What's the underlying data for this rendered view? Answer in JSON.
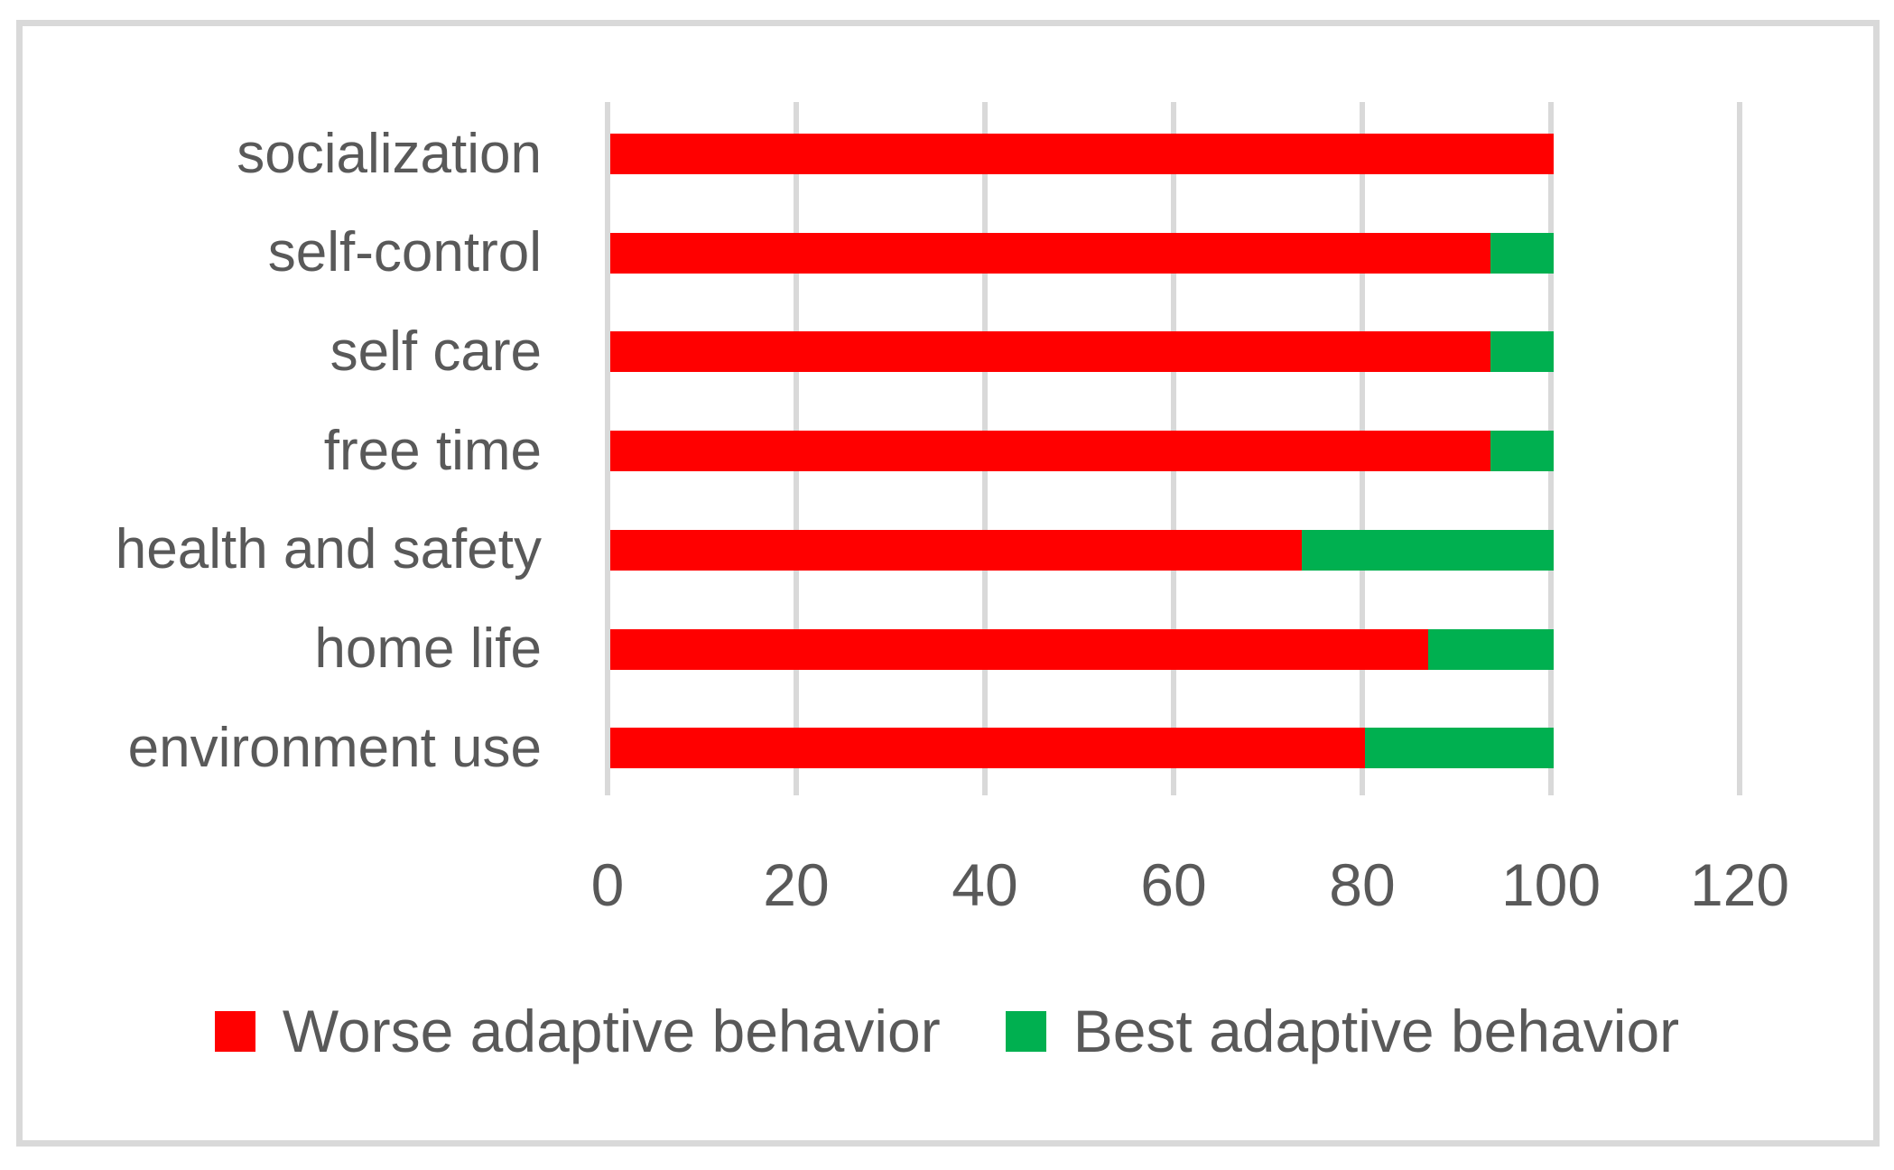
{
  "chart_data": {
    "type": "bar",
    "orientation": "horizontal",
    "stacked": true,
    "title": "",
    "xlabel": "",
    "ylabel": "",
    "categories": [
      "socialization",
      "self-control",
      "self care",
      "free time",
      "health and safety",
      "home life",
      "environment use"
    ],
    "series": [
      {
        "name": "Worse adaptive behavior",
        "color": "#FF0000",
        "values": [
          100,
          93.3,
          93.3,
          93.3,
          73.3,
          86.7,
          80
        ]
      },
      {
        "name": "Best adaptive behavior",
        "color": "#00B050",
        "values": [
          0,
          6.7,
          6.7,
          6.7,
          26.7,
          13.3,
          20
        ]
      }
    ],
    "x_ticks": [
      0,
      20,
      40,
      60,
      80,
      100,
      120
    ],
    "xlim": [
      0,
      120
    ],
    "grid": "vertical",
    "legend_position": "bottom",
    "colors": {
      "grid": "#D9D9D9",
      "border": "#D9D9D9",
      "text": "#595959",
      "background": "#FFFFFF"
    }
  }
}
